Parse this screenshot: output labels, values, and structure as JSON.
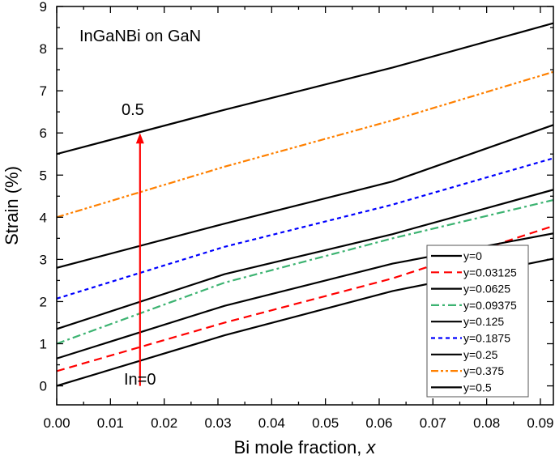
{
  "chart_data": {
    "type": "line",
    "title": "",
    "xlabel": "Bi mole fraction, ",
    "xlabel_italic": "x",
    "ylabel": "Strain (%)",
    "xlim": [
      0,
      0.0925
    ],
    "ylim": [
      -0.45,
      9
    ],
    "x_ticks": [
      "0.00",
      "0.01",
      "0.02",
      "0.03",
      "0.04",
      "0.05",
      "0.06",
      "0.07",
      "0.08",
      "0.09"
    ],
    "y_ticks": [
      "0",
      "1",
      "2",
      "3",
      "4",
      "5",
      "6",
      "7",
      "8",
      "9"
    ],
    "grid": false,
    "legend_position": "bottom-right",
    "x": [
      0,
      0.03125,
      0.0625,
      0.09375
    ],
    "series": [
      {
        "name": "y=0",
        "color": "#000000",
        "dash": "solid",
        "values": [
          0.0,
          1.2,
          2.25,
          3.05
        ]
      },
      {
        "name": "y=0.03125",
        "color": "#ff0000",
        "dash": "dash",
        "values": [
          0.35,
          1.5,
          2.55,
          3.85
        ]
      },
      {
        "name": "y=0.0625",
        "color": "#000000",
        "dash": "solid",
        "values": [
          0.65,
          1.9,
          2.9,
          3.65
        ]
      },
      {
        "name": "y=0.09375",
        "color": "#3cb371",
        "dash": "dashdot",
        "values": [
          1.0,
          2.45,
          3.5,
          4.45
        ]
      },
      {
        "name": "y=0.125",
        "color": "#000000",
        "dash": "solid",
        "values": [
          1.35,
          2.65,
          3.6,
          4.7
        ]
      },
      {
        "name": "y=0.1875",
        "color": "#0000ff",
        "dash": "shortdash",
        "values": [
          2.07,
          3.3,
          4.3,
          5.45
        ]
      },
      {
        "name": "y=0.25",
        "color": "#000000",
        "dash": "solid",
        "values": [
          2.8,
          3.85,
          4.85,
          6.25
        ]
      },
      {
        "name": "y=0.375",
        "color": "#ff8000",
        "dash": "dashdotdot",
        "values": [
          4.0,
          5.2,
          6.3,
          7.5
        ]
      },
      {
        "name": "y=0.5",
        "color": "#000000",
        "dash": "solid",
        "values": [
          5.5,
          6.55,
          7.55,
          8.65
        ]
      }
    ],
    "annotations": {
      "inset_title": "InGaNBi on GaN",
      "top_label": "0.5",
      "bottom_label": "In=0",
      "arrow": {
        "x": 0.0155,
        "from": 0.0,
        "to": 6.0,
        "color": "#ff0000"
      }
    }
  }
}
